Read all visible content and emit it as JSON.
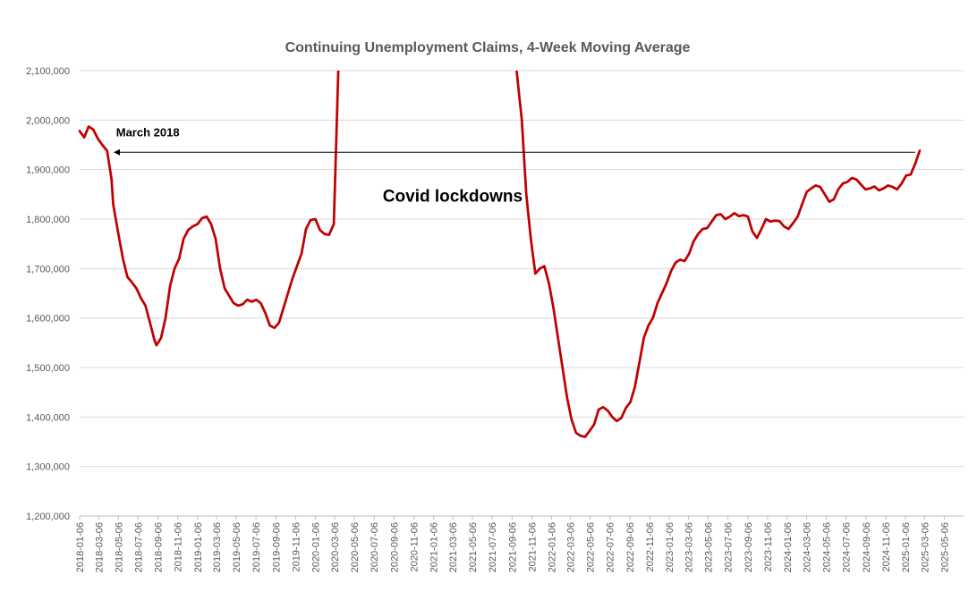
{
  "chart_data": {
    "type": "line",
    "title": "Continuing Unemployment Claims, 4-Week Moving Average",
    "xlabel": "",
    "ylabel": "",
    "ylim": [
      1200000,
      2100000
    ],
    "grid": true,
    "legend": "none",
    "x_range": [
      "2018-01-06",
      "2025-07-05"
    ],
    "y_ticks": [
      "1,200,000",
      "1,300,000",
      "1,400,000",
      "1,500,000",
      "1,600,000",
      "1,700,000",
      "1,800,000",
      "1,900,000",
      "2,000,000",
      "2,100,000"
    ],
    "x_ticks": [
      "2018-01-06",
      "2018-03-06",
      "2018-05-06",
      "2018-07-06",
      "2018-09-06",
      "2018-11-06",
      "2019-01-06",
      "2019-03-06",
      "2019-05-06",
      "2019-07-06",
      "2019-09-06",
      "2019-11-06",
      "2020-01-06",
      "2020-03-06",
      "2020-05-06",
      "2020-07-06",
      "2020-09-06",
      "2020-11-06",
      "2021-01-06",
      "2021-03-06",
      "2021-05-06",
      "2021-07-06",
      "2021-09-06",
      "2021-11-06",
      "2022-01-06",
      "2022-03-06",
      "2022-05-06",
      "2022-07-06",
      "2022-09-06",
      "2022-11-06",
      "2023-01-06",
      "2023-03-06",
      "2023-05-06",
      "2023-07-06",
      "2023-09-06",
      "2023-11-06",
      "2024-01-06",
      "2024-03-06",
      "2024-05-06",
      "2024-07-06",
      "2024-09-06",
      "2024-11-06",
      "2025-01-06",
      "2025-03-06",
      "2025-05-06"
    ],
    "line_color": "#C00000",
    "series": [
      {
        "points": [
          [
            "2018-01-06",
            1978000
          ],
          [
            "2018-01-20",
            1965000
          ],
          [
            "2018-02-03",
            1987000
          ],
          [
            "2018-02-17",
            1981000
          ],
          [
            "2018-03-03",
            1963000
          ],
          [
            "2018-03-17",
            1950000
          ],
          [
            "2018-04-01",
            1938000
          ],
          [
            "2018-04-15",
            1880000
          ],
          [
            "2018-04-20",
            1830000
          ],
          [
            "2018-05-06",
            1770000
          ],
          [
            "2018-05-20",
            1720000
          ],
          [
            "2018-06-03",
            1683000
          ],
          [
            "2018-06-17",
            1672000
          ],
          [
            "2018-07-01",
            1660000
          ],
          [
            "2018-07-15",
            1640000
          ],
          [
            "2018-07-29",
            1625000
          ],
          [
            "2018-08-12",
            1590000
          ],
          [
            "2018-08-26",
            1555000
          ],
          [
            "2018-09-01",
            1545000
          ],
          [
            "2018-09-15",
            1560000
          ],
          [
            "2018-09-29",
            1600000
          ],
          [
            "2018-10-13",
            1665000
          ],
          [
            "2018-10-27",
            1700000
          ],
          [
            "2018-11-10",
            1720000
          ],
          [
            "2018-11-24",
            1760000
          ],
          [
            "2018-12-08",
            1778000
          ],
          [
            "2018-12-22",
            1785000
          ],
          [
            "2019-01-06",
            1790000
          ],
          [
            "2019-01-20",
            1802000
          ],
          [
            "2019-02-03",
            1805000
          ],
          [
            "2019-02-17",
            1790000
          ],
          [
            "2019-03-03",
            1760000
          ],
          [
            "2019-03-17",
            1700000
          ],
          [
            "2019-03-31",
            1660000
          ],
          [
            "2019-04-14",
            1645000
          ],
          [
            "2019-04-28",
            1630000
          ],
          [
            "2019-05-12",
            1625000
          ],
          [
            "2019-05-26",
            1628000
          ],
          [
            "2019-06-09",
            1637000
          ],
          [
            "2019-06-23",
            1633000
          ],
          [
            "2019-07-07",
            1637000
          ],
          [
            "2019-07-21",
            1630000
          ],
          [
            "2019-08-04",
            1610000
          ],
          [
            "2019-08-18",
            1585000
          ],
          [
            "2019-09-01",
            1580000
          ],
          [
            "2019-09-15",
            1590000
          ],
          [
            "2019-09-29",
            1620000
          ],
          [
            "2019-10-13",
            1650000
          ],
          [
            "2019-10-27",
            1680000
          ],
          [
            "2019-11-10",
            1705000
          ],
          [
            "2019-11-24",
            1730000
          ],
          [
            "2019-12-08",
            1780000
          ],
          [
            "2019-12-22",
            1798000
          ],
          [
            "2020-01-06",
            1800000
          ],
          [
            "2020-01-20",
            1778000
          ],
          [
            "2020-02-03",
            1770000
          ],
          [
            "2020-02-17",
            1768000
          ],
          [
            "2020-03-03",
            1790000
          ],
          [
            "2020-03-17",
            2100000
          ]
        ]
      },
      {
        "points": [
          [
            "2021-09-20",
            2100000
          ],
          [
            "2021-10-06",
            2000000
          ],
          [
            "2021-10-20",
            1850000
          ],
          [
            "2021-11-03",
            1760000
          ],
          [
            "2021-11-17",
            1690000
          ],
          [
            "2021-12-01",
            1700000
          ],
          [
            "2021-12-15",
            1705000
          ],
          [
            "2021-12-29",
            1670000
          ],
          [
            "2022-01-12",
            1620000
          ],
          [
            "2022-01-26",
            1560000
          ],
          [
            "2022-02-09",
            1500000
          ],
          [
            "2022-02-23",
            1440000
          ],
          [
            "2022-03-09",
            1395000
          ],
          [
            "2022-03-23",
            1368000
          ],
          [
            "2022-04-06",
            1362000
          ],
          [
            "2022-04-20",
            1360000
          ],
          [
            "2022-05-04",
            1372000
          ],
          [
            "2022-05-18",
            1385000
          ],
          [
            "2022-06-01",
            1415000
          ],
          [
            "2022-06-15",
            1420000
          ],
          [
            "2022-06-29",
            1413000
          ],
          [
            "2022-07-13",
            1400000
          ],
          [
            "2022-07-27",
            1392000
          ],
          [
            "2022-08-10",
            1398000
          ],
          [
            "2022-08-24",
            1418000
          ],
          [
            "2022-09-07",
            1430000
          ],
          [
            "2022-09-21",
            1460000
          ],
          [
            "2022-10-05",
            1510000
          ],
          [
            "2022-10-19",
            1560000
          ],
          [
            "2022-11-02",
            1585000
          ],
          [
            "2022-11-16",
            1600000
          ],
          [
            "2022-11-30",
            1630000
          ],
          [
            "2022-12-14",
            1650000
          ],
          [
            "2022-12-28",
            1670000
          ],
          [
            "2023-01-11",
            1695000
          ],
          [
            "2023-01-25",
            1712000
          ],
          [
            "2023-02-08",
            1718000
          ],
          [
            "2023-02-22",
            1715000
          ],
          [
            "2023-03-08",
            1730000
          ],
          [
            "2023-03-22",
            1755000
          ],
          [
            "2023-04-05",
            1770000
          ],
          [
            "2023-04-19",
            1780000
          ],
          [
            "2023-05-03",
            1782000
          ],
          [
            "2023-05-17",
            1795000
          ],
          [
            "2023-05-31",
            1808000
          ],
          [
            "2023-06-14",
            1810000
          ],
          [
            "2023-06-28",
            1800000
          ],
          [
            "2023-07-12",
            1805000
          ],
          [
            "2023-07-26",
            1812000
          ],
          [
            "2023-08-09",
            1806000
          ],
          [
            "2023-08-23",
            1808000
          ],
          [
            "2023-09-06",
            1805000
          ],
          [
            "2023-09-20",
            1775000
          ],
          [
            "2023-10-04",
            1762000
          ],
          [
            "2023-10-18",
            1780000
          ],
          [
            "2023-11-01",
            1800000
          ],
          [
            "2023-11-15",
            1795000
          ],
          [
            "2023-11-29",
            1797000
          ],
          [
            "2023-12-13",
            1796000
          ],
          [
            "2023-12-27",
            1785000
          ],
          [
            "2024-01-10",
            1780000
          ],
          [
            "2024-01-24",
            1792000
          ],
          [
            "2024-02-07",
            1805000
          ],
          [
            "2024-02-21",
            1830000
          ],
          [
            "2024-03-06",
            1855000
          ],
          [
            "2024-03-20",
            1862000
          ],
          [
            "2024-04-03",
            1868000
          ],
          [
            "2024-04-17",
            1865000
          ],
          [
            "2024-05-01",
            1850000
          ],
          [
            "2024-05-15",
            1835000
          ],
          [
            "2024-05-29",
            1840000
          ],
          [
            "2024-06-12",
            1860000
          ],
          [
            "2024-06-26",
            1872000
          ],
          [
            "2024-07-10",
            1875000
          ],
          [
            "2024-07-24",
            1883000
          ],
          [
            "2024-08-07",
            1880000
          ],
          [
            "2024-08-21",
            1870000
          ],
          [
            "2024-09-04",
            1860000
          ],
          [
            "2024-09-18",
            1862000
          ],
          [
            "2024-10-02",
            1866000
          ],
          [
            "2024-10-16",
            1858000
          ],
          [
            "2024-10-30",
            1862000
          ],
          [
            "2024-11-13",
            1868000
          ],
          [
            "2024-11-27",
            1865000
          ],
          [
            "2024-12-11",
            1860000
          ],
          [
            "2024-12-25",
            1872000
          ],
          [
            "2025-01-08",
            1888000
          ],
          [
            "2025-01-22",
            1890000
          ],
          [
            "2025-02-05",
            1912000
          ],
          [
            "2025-02-19",
            1938000
          ]
        ]
      }
    ],
    "annotations": [
      {
        "text": "March 2018",
        "type": "arrow-label",
        "y": 1935000,
        "x_from": "2025-02-05",
        "x_to": "2018-04-15"
      },
      {
        "text": "Covid lockdowns",
        "type": "label",
        "x": "2021-03-06",
        "y": 1835000
      }
    ]
  }
}
